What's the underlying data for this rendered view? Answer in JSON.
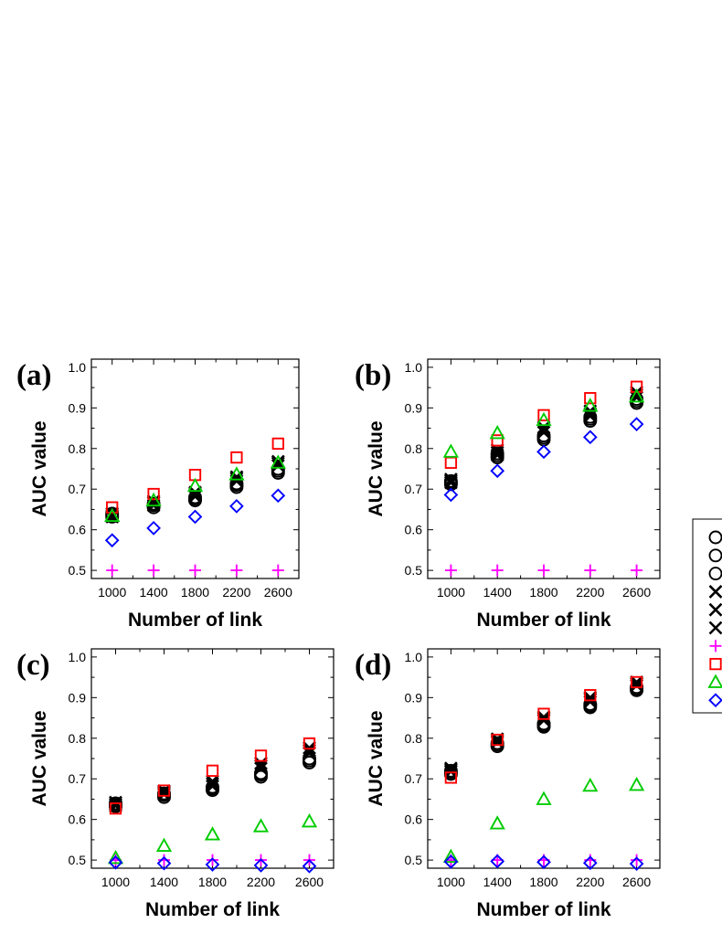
{
  "chart_data": [
    {
      "type": "scatter",
      "panel_label": "(a)",
      "xlabel": "Number of link",
      "ylabel": "AUC value",
      "x": [
        1000,
        1400,
        1800,
        2200,
        2600
      ],
      "xlim": [
        800,
        2800
      ],
      "ylim": [
        0.48,
        1.02
      ],
      "yticks": [
        "0.5",
        "0.6",
        "0.7",
        "0.8",
        "0.9",
        "1.0"
      ],
      "series": [
        {
          "name": "circle-1",
          "marker": "circle",
          "color": "#000000",
          "values": [
            0.632,
            0.655,
            0.672,
            0.705,
            0.74
          ]
        },
        {
          "name": "circle-2",
          "marker": "circle",
          "color": "#000000",
          "values": [
            0.636,
            0.66,
            0.676,
            0.71,
            0.745
          ]
        },
        {
          "name": "circle-3",
          "marker": "circle",
          "color": "#000000",
          "values": [
            0.64,
            0.664,
            0.68,
            0.714,
            0.75
          ]
        },
        {
          "name": "cross-1",
          "marker": "cross",
          "color": "#000000",
          "values": [
            0.632,
            0.66,
            0.682,
            0.72,
            0.758
          ]
        },
        {
          "name": "cross-2",
          "marker": "cross",
          "color": "#000000",
          "values": [
            0.636,
            0.666,
            0.688,
            0.726,
            0.764
          ]
        },
        {
          "name": "cross-3",
          "marker": "cross",
          "color": "#000000",
          "values": [
            0.64,
            0.67,
            0.692,
            0.73,
            0.768
          ]
        },
        {
          "name": "plus",
          "marker": "plus",
          "color": "#ff00ff",
          "values": [
            0.5,
            0.5,
            0.5,
            0.5,
            0.5
          ]
        },
        {
          "name": "square",
          "marker": "square",
          "color": "#ff0000",
          "values": [
            0.655,
            0.688,
            0.735,
            0.778,
            0.812
          ]
        },
        {
          "name": "triangle",
          "marker": "triangle",
          "color": "#00cc00",
          "values": [
            0.634,
            0.672,
            0.708,
            0.736,
            0.765
          ]
        },
        {
          "name": "diamond",
          "marker": "diamond",
          "color": "#0000ff",
          "values": [
            0.574,
            0.604,
            0.632,
            0.658,
            0.684
          ]
        }
      ]
    },
    {
      "type": "scatter",
      "panel_label": "(b)",
      "xlabel": "Number of link",
      "ylabel": "AUC value",
      "x": [
        1000,
        1400,
        1800,
        2200,
        2600
      ],
      "xlim": [
        800,
        2800
      ],
      "ylim": [
        0.48,
        1.02
      ],
      "yticks": [
        "0.5",
        "0.6",
        "0.7",
        "0.8",
        "0.9",
        "1.0"
      ],
      "series": [
        {
          "name": "circle-1",
          "marker": "circle",
          "color": "#000000",
          "values": [
            0.712,
            0.778,
            0.822,
            0.868,
            0.912
          ]
        },
        {
          "name": "circle-2",
          "marker": "circle",
          "color": "#000000",
          "values": [
            0.716,
            0.783,
            0.827,
            0.873,
            0.917
          ]
        },
        {
          "name": "circle-3",
          "marker": "circle",
          "color": "#000000",
          "values": [
            0.72,
            0.788,
            0.832,
            0.878,
            0.922
          ]
        },
        {
          "name": "cross-1",
          "marker": "cross",
          "color": "#000000",
          "values": [
            0.716,
            0.784,
            0.84,
            0.88,
            0.926
          ]
        },
        {
          "name": "cross-2",
          "marker": "cross",
          "color": "#000000",
          "values": [
            0.72,
            0.79,
            0.846,
            0.886,
            0.932
          ]
        },
        {
          "name": "cross-3",
          "marker": "cross",
          "color": "#000000",
          "values": [
            0.724,
            0.796,
            0.852,
            0.892,
            0.938
          ]
        },
        {
          "name": "plus",
          "marker": "plus",
          "color": "#ff00ff",
          "values": [
            0.5,
            0.5,
            0.5,
            0.5,
            0.5
          ]
        },
        {
          "name": "square",
          "marker": "square",
          "color": "#ff0000",
          "values": [
            0.765,
            0.82,
            0.882,
            0.924,
            0.952
          ]
        },
        {
          "name": "triangle",
          "marker": "triangle",
          "color": "#00cc00",
          "values": [
            0.792,
            0.838,
            0.87,
            0.905,
            0.928
          ]
        },
        {
          "name": "diamond",
          "marker": "diamond",
          "color": "#0000ff",
          "values": [
            0.686,
            0.745,
            0.792,
            0.828,
            0.86
          ]
        }
      ]
    },
    {
      "type": "scatter",
      "panel_label": "(c)",
      "xlabel": "Number of link",
      "ylabel": "AUC value",
      "x": [
        1000,
        1400,
        1800,
        2200,
        2600
      ],
      "xlim": [
        800,
        2800
      ],
      "ylim": [
        0.48,
        1.02
      ],
      "yticks": [
        "0.5",
        "0.6",
        "0.7",
        "0.8",
        "0.9",
        "1.0"
      ],
      "series": [
        {
          "name": "circle-1",
          "marker": "circle",
          "color": "#000000",
          "values": [
            0.632,
            0.655,
            0.672,
            0.705,
            0.74
          ]
        },
        {
          "name": "circle-2",
          "marker": "circle",
          "color": "#000000",
          "values": [
            0.636,
            0.66,
            0.676,
            0.71,
            0.745
          ]
        },
        {
          "name": "circle-3",
          "marker": "circle",
          "color": "#000000",
          "values": [
            0.64,
            0.664,
            0.68,
            0.714,
            0.75
          ]
        },
        {
          "name": "cross-1",
          "marker": "cross",
          "color": "#000000",
          "values": [
            0.634,
            0.662,
            0.682,
            0.726,
            0.764
          ]
        },
        {
          "name": "cross-2",
          "marker": "cross",
          "color": "#000000",
          "values": [
            0.638,
            0.666,
            0.688,
            0.732,
            0.77
          ]
        },
        {
          "name": "cross-3",
          "marker": "cross",
          "color": "#000000",
          "values": [
            0.642,
            0.67,
            0.694,
            0.738,
            0.776
          ]
        },
        {
          "name": "plus",
          "marker": "plus",
          "color": "#ff00ff",
          "values": [
            0.5,
            0.5,
            0.5,
            0.5,
            0.5
          ]
        },
        {
          "name": "square",
          "marker": "square",
          "color": "#ff0000",
          "values": [
            0.627,
            0.671,
            0.72,
            0.757,
            0.787
          ]
        },
        {
          "name": "triangle",
          "marker": "triangle",
          "color": "#00cc00",
          "values": [
            0.505,
            0.535,
            0.563,
            0.583,
            0.595
          ]
        },
        {
          "name": "diamond",
          "marker": "diamond",
          "color": "#0000ff",
          "values": [
            0.494,
            0.492,
            0.489,
            0.487,
            0.485
          ]
        }
      ]
    },
    {
      "type": "scatter",
      "panel_label": "(d)",
      "xlabel": "Number of link",
      "ylabel": "AUC value",
      "x": [
        1000,
        1400,
        1800,
        2200,
        2600
      ],
      "xlim": [
        800,
        2800
      ],
      "ylim": [
        0.48,
        1.02
      ],
      "yticks": [
        "0.5",
        "0.6",
        "0.7",
        "0.8",
        "0.9",
        "1.0"
      ],
      "series": [
        {
          "name": "circle-1",
          "marker": "circle",
          "color": "#000000",
          "values": [
            0.712,
            0.78,
            0.828,
            0.876,
            0.918
          ]
        },
        {
          "name": "circle-2",
          "marker": "circle",
          "color": "#000000",
          "values": [
            0.716,
            0.784,
            0.832,
            0.88,
            0.922
          ]
        },
        {
          "name": "circle-3",
          "marker": "circle",
          "color": "#000000",
          "values": [
            0.72,
            0.788,
            0.836,
            0.884,
            0.926
          ]
        },
        {
          "name": "cross-1",
          "marker": "cross",
          "color": "#000000",
          "values": [
            0.718,
            0.79,
            0.844,
            0.89,
            0.93
          ]
        },
        {
          "name": "cross-2",
          "marker": "cross",
          "color": "#000000",
          "values": [
            0.722,
            0.794,
            0.848,
            0.896,
            0.934
          ]
        },
        {
          "name": "cross-3",
          "marker": "cross",
          "color": "#000000",
          "values": [
            0.726,
            0.798,
            0.852,
            0.9,
            0.938
          ]
        },
        {
          "name": "plus",
          "marker": "plus",
          "color": "#ff00ff",
          "values": [
            0.5,
            0.5,
            0.5,
            0.5,
            0.5
          ]
        },
        {
          "name": "square",
          "marker": "square",
          "color": "#ff0000",
          "values": [
            0.703,
            0.796,
            0.86,
            0.906,
            0.938
          ]
        },
        {
          "name": "triangle",
          "marker": "triangle",
          "color": "#00cc00",
          "values": [
            0.508,
            0.59,
            0.65,
            0.683,
            0.685
          ]
        },
        {
          "name": "diamond",
          "marker": "diamond",
          "color": "#0000ff",
          "values": [
            0.496,
            0.497,
            0.495,
            0.493,
            0.491
          ]
        }
      ]
    }
  ],
  "legend": {
    "position": "right",
    "entries": [
      {
        "marker": "circle",
        "color": "#000000"
      },
      {
        "marker": "circle",
        "color": "#000000"
      },
      {
        "marker": "circle",
        "color": "#000000"
      },
      {
        "marker": "cross",
        "color": "#000000"
      },
      {
        "marker": "cross",
        "color": "#000000"
      },
      {
        "marker": "cross",
        "color": "#000000"
      },
      {
        "marker": "plus",
        "color": "#ff00ff"
      },
      {
        "marker": "square",
        "color": "#ff0000"
      },
      {
        "marker": "triangle",
        "color": "#00cc00"
      },
      {
        "marker": "diamond",
        "color": "#0000ff"
      }
    ]
  }
}
